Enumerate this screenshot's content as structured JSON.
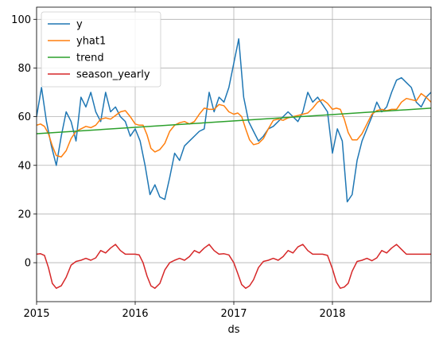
{
  "chart_data": {
    "type": "line",
    "xlabel": "ds",
    "ylabel": "",
    "title": "",
    "x_range": [
      "2015-01-01",
      "2018-12-31"
    ],
    "xlim": [
      2015.0,
      2019.0
    ],
    "ylim": [
      -16,
      105
    ],
    "x_tick_labels": [
      "2015",
      "2016",
      "2017",
      "2018"
    ],
    "x_ticks": [
      2015,
      2016,
      2017,
      2018
    ],
    "y_ticks": [
      0,
      20,
      40,
      60,
      80,
      100
    ],
    "grid": true,
    "legend_position": "upper left",
    "series": [
      {
        "name": "y",
        "color": "#1f77b4",
        "x": [
          2015.0,
          2015.05,
          2015.1,
          2015.15,
          2015.2,
          2015.25,
          2015.3,
          2015.35,
          2015.4,
          2015.45,
          2015.5,
          2015.55,
          2015.6,
          2015.65,
          2015.7,
          2015.75,
          2015.8,
          2015.85,
          2015.9,
          2015.95,
          2016.0,
          2016.05,
          2016.1,
          2016.15,
          2016.2,
          2016.25,
          2016.3,
          2016.35,
          2016.4,
          2016.45,
          2016.5,
          2016.55,
          2016.6,
          2016.65,
          2016.7,
          2016.75,
          2016.8,
          2016.85,
          2016.9,
          2016.95,
          2017.0,
          2017.05,
          2017.1,
          2017.15,
          2017.2,
          2017.25,
          2017.3,
          2017.35,
          2017.4,
          2017.45,
          2017.5,
          2017.55,
          2017.6,
          2017.65,
          2017.7,
          2017.75,
          2017.8,
          2017.85,
          2017.9,
          2017.95,
          2018.0,
          2018.05,
          2018.1,
          2018.15,
          2018.2,
          2018.25,
          2018.3,
          2018.35,
          2018.4,
          2018.45,
          2018.5,
          2018.55,
          2018.6,
          2018.65,
          2018.7,
          2018.75,
          2018.8,
          2018.85,
          2018.9,
          2018.95,
          2019.0
        ],
        "values": [
          60,
          72,
          58,
          48,
          40,
          52,
          62,
          58,
          50,
          68,
          64,
          70,
          62,
          58,
          70,
          62,
          64,
          60,
          58,
          52,
          55,
          50,
          40,
          28,
          32,
          27,
          26,
          35,
          45,
          42,
          48,
          50,
          52,
          54,
          55,
          70,
          62,
          68,
          66,
          72,
          82,
          92,
          68,
          58,
          54,
          50,
          52,
          55,
          56,
          58,
          60,
          62,
          60,
          58,
          62,
          70,
          66,
          68,
          65,
          62,
          45,
          55,
          50,
          25,
          28,
          42,
          50,
          55,
          60,
          66,
          62,
          64,
          70,
          75,
          76,
          74,
          72,
          66,
          64,
          68,
          70
        ]
      },
      {
        "name": "yhat1",
        "color": "#ff7f0e",
        "x": [
          2015.0,
          2015.04,
          2015.08,
          2015.12,
          2015.16,
          2015.2,
          2015.25,
          2015.3,
          2015.35,
          2015.4,
          2015.45,
          2015.5,
          2015.55,
          2015.6,
          2015.65,
          2015.7,
          2015.75,
          2015.8,
          2015.85,
          2015.9,
          2015.95,
          2016.0,
          2016.04,
          2016.08,
          2016.12,
          2016.16,
          2016.2,
          2016.25,
          2016.3,
          2016.35,
          2016.4,
          2016.45,
          2016.5,
          2016.55,
          2016.6,
          2016.65,
          2016.7,
          2016.75,
          2016.8,
          2016.85,
          2016.9,
          2016.95,
          2017.0,
          2017.04,
          2017.08,
          2017.12,
          2017.16,
          2017.2,
          2017.25,
          2017.3,
          2017.35,
          2017.4,
          2017.45,
          2017.5,
          2017.55,
          2017.6,
          2017.65,
          2017.7,
          2017.75,
          2017.8,
          2017.85,
          2017.9,
          2017.95,
          2018.0,
          2018.04,
          2018.08,
          2018.12,
          2018.16,
          2018.2,
          2018.25,
          2018.3,
          2018.35,
          2018.4,
          2018.45,
          2018.5,
          2018.55,
          2018.6,
          2018.65,
          2018.7,
          2018.75,
          2018.8,
          2018.85,
          2018.9,
          2018.95,
          2019.0
        ],
        "values": [
          56.5,
          57,
          56,
          53,
          48,
          44,
          43.5,
          46,
          51,
          54,
          55,
          56,
          55.5,
          56.5,
          59,
          59.5,
          59,
          60.5,
          62,
          62.5,
          60,
          57,
          56.5,
          56.5,
          52.5,
          47,
          45.5,
          46.5,
          49,
          54,
          56.5,
          57.5,
          58,
          57,
          58,
          61,
          63.5,
          63,
          63,
          65,
          64.5,
          62,
          61,
          61.5,
          60,
          55,
          50.5,
          48.5,
          49,
          51,
          55,
          58.5,
          59,
          58.5,
          59.5,
          60,
          60.5,
          61,
          61.5,
          63.5,
          66,
          67,
          65.5,
          63,
          63.5,
          63,
          59,
          53.5,
          50.5,
          50.5,
          53,
          57,
          61,
          62.5,
          63,
          62.5,
          63,
          63,
          66,
          67.5,
          67,
          66.5,
          69.5,
          68,
          66
        ]
      },
      {
        "name": "trend",
        "color": "#2ca02c",
        "x": [
          2015.0,
          2019.0
        ],
        "values": [
          53,
          63.5
        ]
      },
      {
        "name": "season_yearly",
        "color": "#d62728",
        "x": [
          2015.0,
          2015.04,
          2015.08,
          2015.12,
          2015.16,
          2015.2,
          2015.25,
          2015.3,
          2015.35,
          2015.4,
          2015.45,
          2015.5,
          2015.55,
          2015.6,
          2015.65,
          2015.7,
          2015.75,
          2015.8,
          2015.85,
          2015.9,
          2015.95,
          2016.0,
          2016.04,
          2016.08,
          2016.12,
          2016.16,
          2016.2,
          2016.25,
          2016.3,
          2016.35,
          2016.4,
          2016.45,
          2016.5,
          2016.55,
          2016.6,
          2016.65,
          2016.7,
          2016.75,
          2016.8,
          2016.85,
          2016.9,
          2016.95,
          2017.0,
          2017.04,
          2017.08,
          2017.12,
          2017.16,
          2017.2,
          2017.25,
          2017.3,
          2017.35,
          2017.4,
          2017.45,
          2017.5,
          2017.55,
          2017.6,
          2017.65,
          2017.7,
          2017.75,
          2017.8,
          2017.85,
          2017.9,
          2017.95,
          2018.0,
          2018.04,
          2018.08,
          2018.12,
          2018.16,
          2018.2,
          2018.25,
          2018.3,
          2018.35,
          2018.4,
          2018.45,
          2018.5,
          2018.55,
          2018.6,
          2018.65,
          2018.7,
          2018.75,
          2018.8,
          2018.85,
          2018.9,
          2018.95,
          2019.0
        ],
        "values": [
          3.5,
          3.7,
          3.0,
          -2.0,
          -8.5,
          -10.5,
          -9.5,
          -6.0,
          -1.0,
          0.5,
          1.0,
          1.8,
          1.0,
          2.0,
          5.0,
          4.0,
          6.0,
          7.5,
          5.0,
          3.5,
          3.5,
          3.5,
          3.2,
          0.0,
          -5.5,
          -9.5,
          -10.5,
          -8.5,
          -3.0,
          0.0,
          1.0,
          1.8,
          1.0,
          2.5,
          5.0,
          4.0,
          6.0,
          7.5,
          5.0,
          3.5,
          3.7,
          3.2,
          0.0,
          -4.5,
          -9.0,
          -10.5,
          -9.5,
          -7.0,
          -2.0,
          0.5,
          1.0,
          1.8,
          1.0,
          2.5,
          5.0,
          4.0,
          6.5,
          7.5,
          5.0,
          3.5,
          3.5,
          3.5,
          3.0,
          -2.5,
          -8.0,
          -10.5,
          -10.0,
          -8.5,
          -3.5,
          0.5,
          1.0,
          1.8,
          0.8,
          2.0,
          5.0,
          4.0,
          6.0,
          7.5,
          5.5,
          3.5,
          3.5,
          3.5,
          3.5,
          3.5,
          3.5
        ]
      }
    ]
  }
}
